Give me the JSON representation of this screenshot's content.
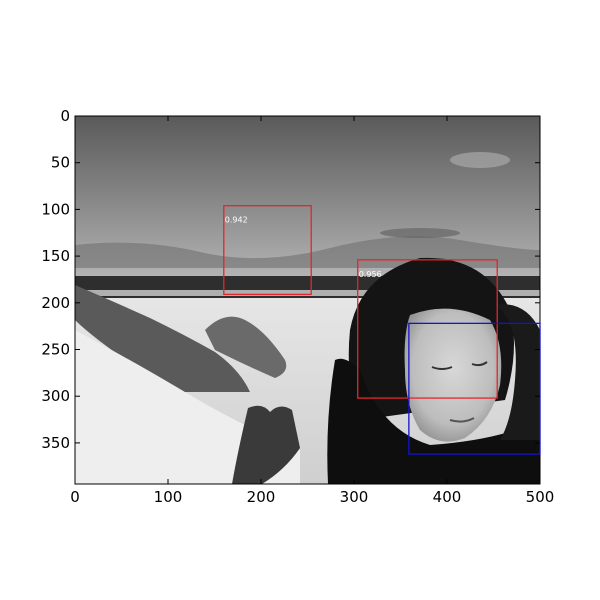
{
  "plot": {
    "xlim": [
      0,
      500
    ],
    "ylim": [
      394,
      0
    ],
    "x_tick_values": [
      0,
      100,
      200,
      300,
      400,
      500
    ],
    "y_tick_values": [
      0,
      50,
      100,
      150,
      200,
      250,
      300,
      350
    ],
    "x_tick_labels": [
      "0",
      "100",
      "200",
      "300",
      "400",
      "500"
    ],
    "y_tick_labels": [
      "0",
      "50",
      "100",
      "150",
      "200",
      "250",
      "300",
      "350"
    ]
  },
  "image_content": "black-and-white photo of a woman's face at a snowy beach with dunes and sea",
  "detections": [
    {
      "label": "0.942",
      "x0": 160,
      "y0": 96,
      "x1": 254,
      "y1": 191,
      "color": "#e8242b"
    },
    {
      "label": "0.956",
      "x0": 304,
      "y0": 154,
      "x1": 454,
      "y1": 302,
      "color": "#e8242b"
    },
    {
      "label": "",
      "x0": 359,
      "y0": 222,
      "x1": 500,
      "y1": 362,
      "color": "#1414c8"
    }
  ]
}
